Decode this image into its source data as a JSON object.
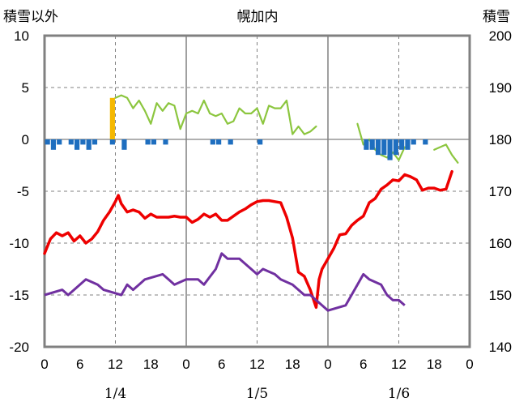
{
  "header": {
    "left_axis_title": "積雪以外",
    "center_title": "幌加内",
    "right_axis_title": "積雪"
  },
  "colors": {
    "temperature": "#ee0000",
    "dewpoint": "#7030a0",
    "snow_depth": "#8cc63f",
    "snowfall": "#f5b800",
    "snow_loss": "#1e6ebf",
    "frame": "#808080",
    "grid": "#808080"
  },
  "chart_data": {
    "type": "line",
    "left_axis": {
      "ylim": [
        -20,
        10
      ],
      "ticks": [
        "10",
        "5",
        "0",
        "-5",
        "-10",
        "-15",
        "-20"
      ]
    },
    "right_axis": {
      "ylim": [
        140,
        200
      ],
      "ticks": [
        "200",
        "190",
        "180",
        "170",
        "160",
        "150",
        "140"
      ]
    },
    "x_hours": [
      0,
      72
    ],
    "x_tick_labels": [
      "0",
      "6",
      "12",
      "18",
      "0",
      "6",
      "12",
      "18",
      "0",
      "6",
      "12",
      "18",
      "0"
    ],
    "date_labels": [
      {
        "label": "1/4",
        "hour": 12
      },
      {
        "label": "1/5",
        "hour": 36
      },
      {
        "label": "1/6",
        "hour": 60
      }
    ],
    "series": [
      {
        "key": "temperature",
        "axis": "left",
        "style": "line",
        "points": [
          [
            0,
            -11
          ],
          [
            1,
            -9.6
          ],
          [
            2,
            -9
          ],
          [
            3,
            -9.3
          ],
          [
            4,
            -9
          ],
          [
            5,
            -9.8
          ],
          [
            6,
            -9.3
          ],
          [
            7,
            -10
          ],
          [
            8,
            -9.6
          ],
          [
            9,
            -8.9
          ],
          [
            10,
            -7.8
          ],
          [
            11,
            -7
          ],
          [
            12,
            -6
          ],
          [
            12.5,
            -5.4
          ],
          [
            13,
            -6.2
          ],
          [
            14,
            -7
          ],
          [
            15,
            -6.8
          ],
          [
            16,
            -7
          ],
          [
            17,
            -7.6
          ],
          [
            18,
            -7.2
          ],
          [
            19,
            -7.5
          ],
          [
            20,
            -7.5
          ],
          [
            21,
            -7.5
          ],
          [
            22,
            -7.4
          ],
          [
            23,
            -7.5
          ],
          [
            24,
            -7.5
          ],
          [
            25,
            -8
          ],
          [
            26,
            -7.7
          ],
          [
            27,
            -7.2
          ],
          [
            28,
            -7.5
          ],
          [
            29,
            -7.2
          ],
          [
            30,
            -7.8
          ],
          [
            31,
            -7.8
          ],
          [
            32,
            -7.4
          ],
          [
            33,
            -7
          ],
          [
            34,
            -6.7
          ],
          [
            35,
            -6.3
          ],
          [
            36,
            -6
          ],
          [
            37,
            -5.9
          ],
          [
            38,
            -5.9
          ],
          [
            39,
            -6
          ],
          [
            40,
            -6.1
          ],
          [
            41,
            -7.5
          ],
          [
            42,
            -9.5
          ],
          [
            43,
            -12.8
          ],
          [
            44,
            -13.2
          ],
          [
            45,
            -14.5
          ],
          [
            46,
            -16.2
          ],
          [
            46.5,
            -13.5
          ],
          [
            47,
            -12.5
          ],
          [
            48,
            -11.5
          ],
          [
            49,
            -10.5
          ],
          [
            50,
            -9.2
          ],
          [
            51,
            -9.1
          ],
          [
            52,
            -8.3
          ],
          [
            53,
            -7.8
          ],
          [
            54,
            -7.4
          ],
          [
            55,
            -6.1
          ],
          [
            56,
            -5.7
          ],
          [
            57,
            -4.8
          ],
          [
            58,
            -4.4
          ],
          [
            59,
            -3.9
          ],
          [
            60,
            -4
          ],
          [
            61,
            -3.4
          ],
          [
            62,
            -3.6
          ],
          [
            63,
            -3.9
          ],
          [
            64,
            -4.9
          ],
          [
            65,
            -4.7
          ],
          [
            66,
            -4.7
          ],
          [
            67,
            -4.9
          ],
          [
            68,
            -4.8
          ],
          [
            69,
            -3.1
          ]
        ]
      },
      {
        "key": "dewpoint",
        "axis": "left",
        "style": "step",
        "points": [
          [
            0,
            -15
          ],
          [
            3,
            -14.5
          ],
          [
            4,
            -15
          ],
          [
            5,
            -14.5
          ],
          [
            7,
            -13.5
          ],
          [
            9,
            -14
          ],
          [
            10,
            -14.5
          ],
          [
            13,
            -15
          ],
          [
            14,
            -14
          ],
          [
            15,
            -14.5
          ],
          [
            16,
            -14
          ],
          [
            17,
            -13.5
          ],
          [
            20,
            -13
          ],
          [
            21,
            -13.5
          ],
          [
            22,
            -14
          ],
          [
            24,
            -13.5
          ],
          [
            26,
            -13.5
          ],
          [
            27,
            -14
          ],
          [
            29,
            -12.5
          ],
          [
            30,
            -11
          ],
          [
            31,
            -11.5
          ],
          [
            33,
            -11.5
          ],
          [
            34,
            -12
          ],
          [
            35,
            -12.5
          ],
          [
            36,
            -13
          ],
          [
            37,
            -12.5
          ],
          [
            39,
            -13
          ],
          [
            40,
            -13.5
          ],
          [
            42,
            -14
          ],
          [
            43,
            -14.5
          ],
          [
            44,
            -15
          ],
          [
            45,
            -15
          ],
          [
            46,
            -15.5
          ],
          [
            47,
            -16
          ],
          [
            48,
            -16.5
          ],
          [
            51,
            -16
          ],
          [
            52,
            -15
          ],
          [
            53,
            -14
          ],
          [
            54,
            -13
          ],
          [
            55,
            -13.5
          ],
          [
            57,
            -14
          ],
          [
            58,
            -15
          ],
          [
            59,
            -15.5
          ],
          [
            60,
            -15.5
          ],
          [
            61,
            -16
          ]
        ]
      },
      {
        "key": "snow_depth",
        "axis": "right",
        "style": "line",
        "segments": [
          [
            [
              12,
              188
            ],
            [
              13,
              188.5
            ],
            [
              14,
              188
            ],
            [
              15,
              186
            ],
            [
              16,
              187.5
            ],
            [
              17,
              185.5
            ],
            [
              18,
              183
            ],
            [
              19,
              187
            ],
            [
              20,
              185.5
            ],
            [
              21,
              187
            ],
            [
              22,
              186.5
            ],
            [
              23,
              182
            ],
            [
              24,
              185
            ],
            [
              25,
              185.5
            ],
            [
              26,
              185
            ],
            [
              27,
              187.5
            ],
            [
              28,
              185
            ],
            [
              29,
              184.5
            ],
            [
              30,
              185
            ],
            [
              31,
              183
            ],
            [
              32,
              183.5
            ],
            [
              33,
              186
            ],
            [
              34,
              185
            ],
            [
              35,
              185
            ],
            [
              36,
              186
            ],
            [
              37,
              183
            ],
            [
              38,
              186.5
            ],
            [
              39,
              186
            ],
            [
              40,
              186
            ],
            [
              41,
              187.5
            ],
            [
              42,
              181
            ],
            [
              43,
              182.5
            ],
            [
              44,
              181
            ],
            [
              45,
              181.5
            ],
            [
              46,
              182.5
            ]
          ],
          [
            [
              53,
              183
            ],
            [
              54,
              179
            ],
            [
              55,
              180
            ],
            [
              56,
              178
            ],
            [
              57,
              177
            ],
            [
              58,
              176.5
            ],
            [
              59,
              177.5
            ],
            [
              60,
              176
            ],
            [
              61,
              178.5
            ]
          ],
          [
            [
              66,
              178
            ],
            [
              68,
              179
            ],
            [
              69,
              177
            ],
            [
              70,
              175.5
            ]
          ]
        ]
      },
      {
        "key": "snowfall",
        "axis": "left",
        "style": "bar",
        "bars": [
          [
            11,
            4
          ]
        ]
      },
      {
        "key": "snow_loss",
        "axis": "left",
        "style": "bar",
        "bars": [
          [
            0,
            -0.5
          ],
          [
            1,
            -1
          ],
          [
            2,
            -0.5
          ],
          [
            4,
            -0.5
          ],
          [
            5,
            -1
          ],
          [
            6,
            -0.5
          ],
          [
            7,
            -1
          ],
          [
            8,
            -0.5
          ],
          [
            11,
            -0.5
          ],
          [
            13,
            -1
          ],
          [
            17,
            -0.5
          ],
          [
            18,
            -0.5
          ],
          [
            20,
            -0.5
          ],
          [
            28,
            -0.5
          ],
          [
            29,
            -0.5
          ],
          [
            31,
            -0.5
          ],
          [
            36,
            -0.5
          ],
          [
            54,
            -1
          ],
          [
            55,
            -1
          ],
          [
            56,
            -1.5
          ],
          [
            57,
            -1.5
          ],
          [
            58,
            -2
          ],
          [
            59,
            -1.5
          ],
          [
            60,
            -1
          ],
          [
            61,
            -1
          ],
          [
            62,
            -0.5
          ],
          [
            64,
            -0.5
          ]
        ]
      }
    ]
  }
}
